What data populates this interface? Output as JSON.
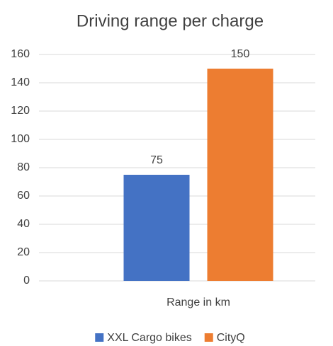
{
  "chart_data": {
    "type": "bar",
    "title": "Driving range per charge",
    "categories": [
      "Range in km"
    ],
    "series": [
      {
        "name": "XXL Cargo bikes",
        "color": "#4472c4",
        "values": [
          75
        ]
      },
      {
        "name": "CityQ",
        "color": "#ed7d31",
        "values": [
          150
        ]
      }
    ],
    "ylim": [
      0,
      160
    ],
    "yticks": [
      0,
      20,
      40,
      60,
      80,
      100,
      120,
      140,
      160
    ],
    "grid": true,
    "legend": "bottom",
    "data_labels": true
  }
}
